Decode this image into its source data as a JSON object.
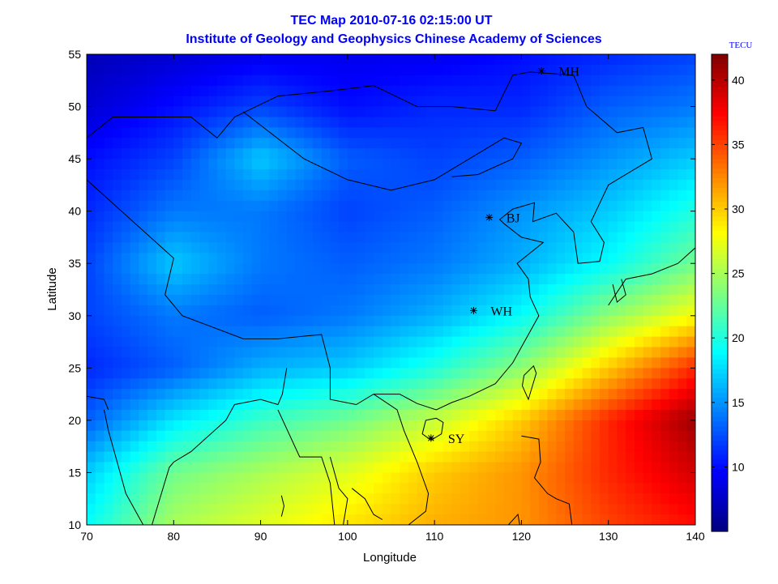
{
  "chart_data": {
    "type": "heatmap",
    "title": "TEC Map 2010-07-16 02:15:00 UT",
    "subtitle": "Institute of Geology and Geophysics Chinese Academy of Sciences",
    "xlabel": "Longitude",
    "ylabel": "Latitude",
    "xlim": [
      70,
      140
    ],
    "ylim": [
      10,
      55
    ],
    "x_ticks": [
      70,
      80,
      90,
      100,
      110,
      120,
      130,
      140
    ],
    "y_ticks": [
      10,
      15,
      20,
      25,
      30,
      35,
      40,
      45,
      50,
      55
    ],
    "colorbar": {
      "label": "TECU",
      "range": [
        5,
        42
      ],
      "ticks": [
        10,
        15,
        20,
        25,
        30,
        35,
        40
      ],
      "colormap": "jet"
    },
    "grid_lon": [
      70,
      80,
      90,
      100,
      110,
      120,
      130,
      140
    ],
    "grid_lat": [
      55,
      50,
      45,
      40,
      35,
      30,
      25,
      20,
      15,
      10
    ],
    "tec_values": [
      [
        7,
        8,
        9,
        9,
        9,
        10,
        11,
        12
      ],
      [
        8,
        10,
        12,
        10,
        11,
        11,
        13,
        14
      ],
      [
        10,
        12,
        17,
        13,
        12,
        13,
        15,
        17
      ],
      [
        11,
        14,
        14,
        12,
        13,
        15,
        17,
        20
      ],
      [
        12,
        17,
        14,
        13,
        14,
        16,
        19,
        23
      ],
      [
        12,
        14,
        13,
        14,
        16,
        19,
        24,
        28
      ],
      [
        11,
        13,
        16,
        17,
        20,
        24,
        30,
        36
      ],
      [
        13,
        18,
        21,
        23,
        26,
        30,
        36,
        41
      ],
      [
        17,
        23,
        25,
        27,
        30,
        32,
        36,
        39
      ],
      [
        19,
        25,
        27,
        29,
        31,
        32,
        35,
        37
      ]
    ],
    "stations": [
      {
        "name": "MH",
        "lon": 122.3,
        "lat": 53.4
      },
      {
        "name": "BJ",
        "lon": 116.3,
        "lat": 39.4
      },
      {
        "name": "WH",
        "lon": 114.5,
        "lat": 30.5
      },
      {
        "name": "SY",
        "lon": 109.6,
        "lat": 18.3
      }
    ]
  }
}
